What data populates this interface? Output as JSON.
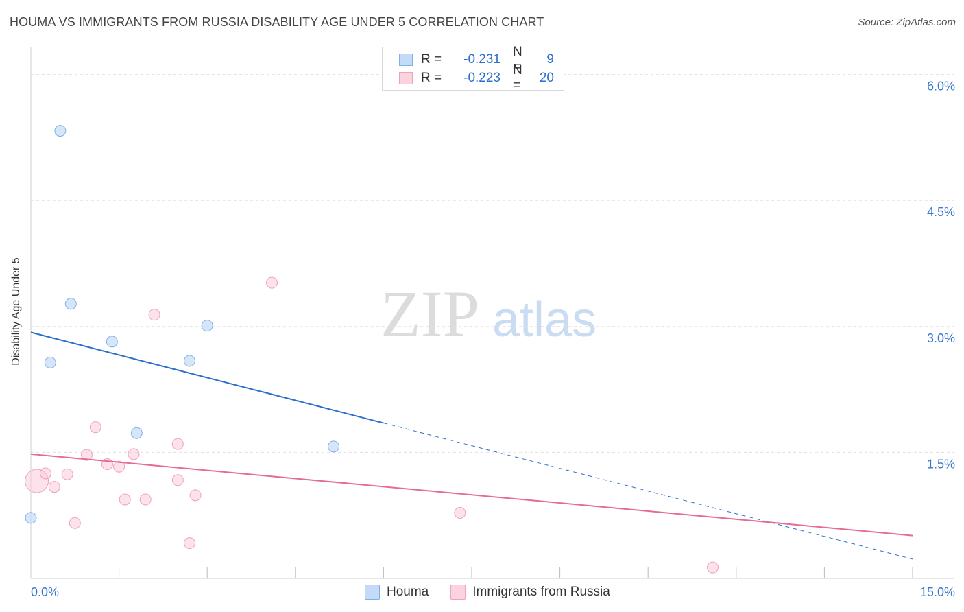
{
  "title": "HOUMA VS IMMIGRANTS FROM RUSSIA DISABILITY AGE UNDER 5 CORRELATION CHART",
  "source": "Source: ZipAtlas.com",
  "watermark": {
    "zip": "ZIP",
    "atlas": "atlas"
  },
  "legend": {
    "rows": [
      {
        "r_label": "R =",
        "r_value": "-0.231",
        "n_label": "N =",
        "n_value": "9"
      },
      {
        "r_label": "R =",
        "r_value": "-0.223",
        "n_label": "N =",
        "n_value": "20"
      }
    ]
  },
  "chart_data": {
    "type": "scatter",
    "title": "HOUMA VS IMMIGRANTS FROM RUSSIA DISABILITY AGE UNDER 5 CORRELATION CHART",
    "xlabel": "",
    "ylabel": "Disability Age Under 5",
    "xlim": [
      0,
      15
    ],
    "ylim": [
      0,
      6.25
    ],
    "x_tick_labels": [
      "0.0%",
      "15.0%"
    ],
    "y_ticks": [
      1.5,
      3.0,
      4.5,
      6.0
    ],
    "y_tick_labels": [
      "1.5%",
      "3.0%",
      "4.5%",
      "6.0%"
    ],
    "grid": true,
    "colors": {
      "houma": "#7fb0ea",
      "russia": "#f2a0bb",
      "houma_line": "#2d6fcc",
      "russia_line": "#e56b94",
      "tick_label": "#3a78d0"
    },
    "series": [
      {
        "name": "Houma",
        "points": [
          [
            0.0,
            0.72
          ],
          [
            0.33,
            2.57
          ],
          [
            0.5,
            5.33
          ],
          [
            0.68,
            3.27
          ],
          [
            1.38,
            2.82
          ],
          [
            1.8,
            1.73
          ],
          [
            2.7,
            2.59
          ],
          [
            3.0,
            3.01
          ],
          [
            5.15,
            1.57
          ]
        ],
        "trend": {
          "x1": 0.0,
          "y1": 2.93,
          "x2": 6.0,
          "y2": 1.85,
          "dash_to_x": 15.0,
          "dash_to_y": 0.23
        }
      },
      {
        "name": "Immigrants from Russia",
        "points": [
          [
            0.1,
            1.16
          ],
          [
            0.25,
            1.25
          ],
          [
            0.4,
            1.09
          ],
          [
            0.62,
            1.24
          ],
          [
            0.75,
            0.66
          ],
          [
            0.95,
            1.47
          ],
          [
            1.1,
            1.8
          ],
          [
            1.3,
            1.36
          ],
          [
            1.5,
            1.33
          ],
          [
            1.6,
            0.94
          ],
          [
            1.75,
            1.48
          ],
          [
            1.95,
            0.94
          ],
          [
            2.1,
            3.14
          ],
          [
            2.5,
            1.6
          ],
          [
            2.5,
            1.17
          ],
          [
            2.7,
            0.42
          ],
          [
            2.8,
            0.99
          ],
          [
            4.1,
            3.52
          ],
          [
            7.3,
            0.78
          ],
          [
            11.6,
            0.13
          ]
        ],
        "trend": {
          "x1": 0.0,
          "y1": 1.48,
          "x2": 15.0,
          "y2": 0.51
        }
      }
    ]
  },
  "bottom_legend": [
    {
      "label": "Houma"
    },
    {
      "label": "Immigrants from Russia"
    }
  ]
}
